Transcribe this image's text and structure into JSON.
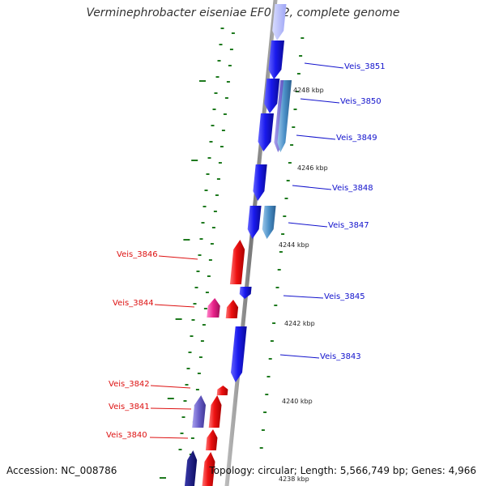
{
  "title": "Verminephrobacter eiseniae EF01-2, complete genome",
  "accession": "Accession: NC_008786",
  "topology": "Topology: circular; Length: 5,566,749 bp; Genes: 4,966",
  "colors": {
    "plus_strand_gene": "#1a1aee",
    "plus_strand_gene_alt": "#4a8fc7",
    "minus_strand_gene": "#ee1111",
    "minus_strand_rna": "#e8228a",
    "minus_strand_gene_alt": "#6a5fc9",
    "backbone": "#8c8c8c",
    "tick": "#1f7a1f",
    "plus_label": "#1111cc",
    "minus_label": "#dd1111"
  },
  "kbp_ticks": [
    "4248 kbp",
    "4246 kbp",
    "4244 kbp",
    "4242 kbp",
    "4240 kbp",
    "4238 kbp"
  ],
  "gene_labels": {
    "plus": [
      "Veis_3851",
      "Veis_3850",
      "Veis_3849",
      "Veis_3848",
      "Veis_3847",
      "Veis_3845",
      "Veis_3843"
    ],
    "minus": [
      "Veis_3846",
      "Veis_3844",
      "Veis_3842",
      "Veis_3841",
      "Veis_3840"
    ]
  }
}
